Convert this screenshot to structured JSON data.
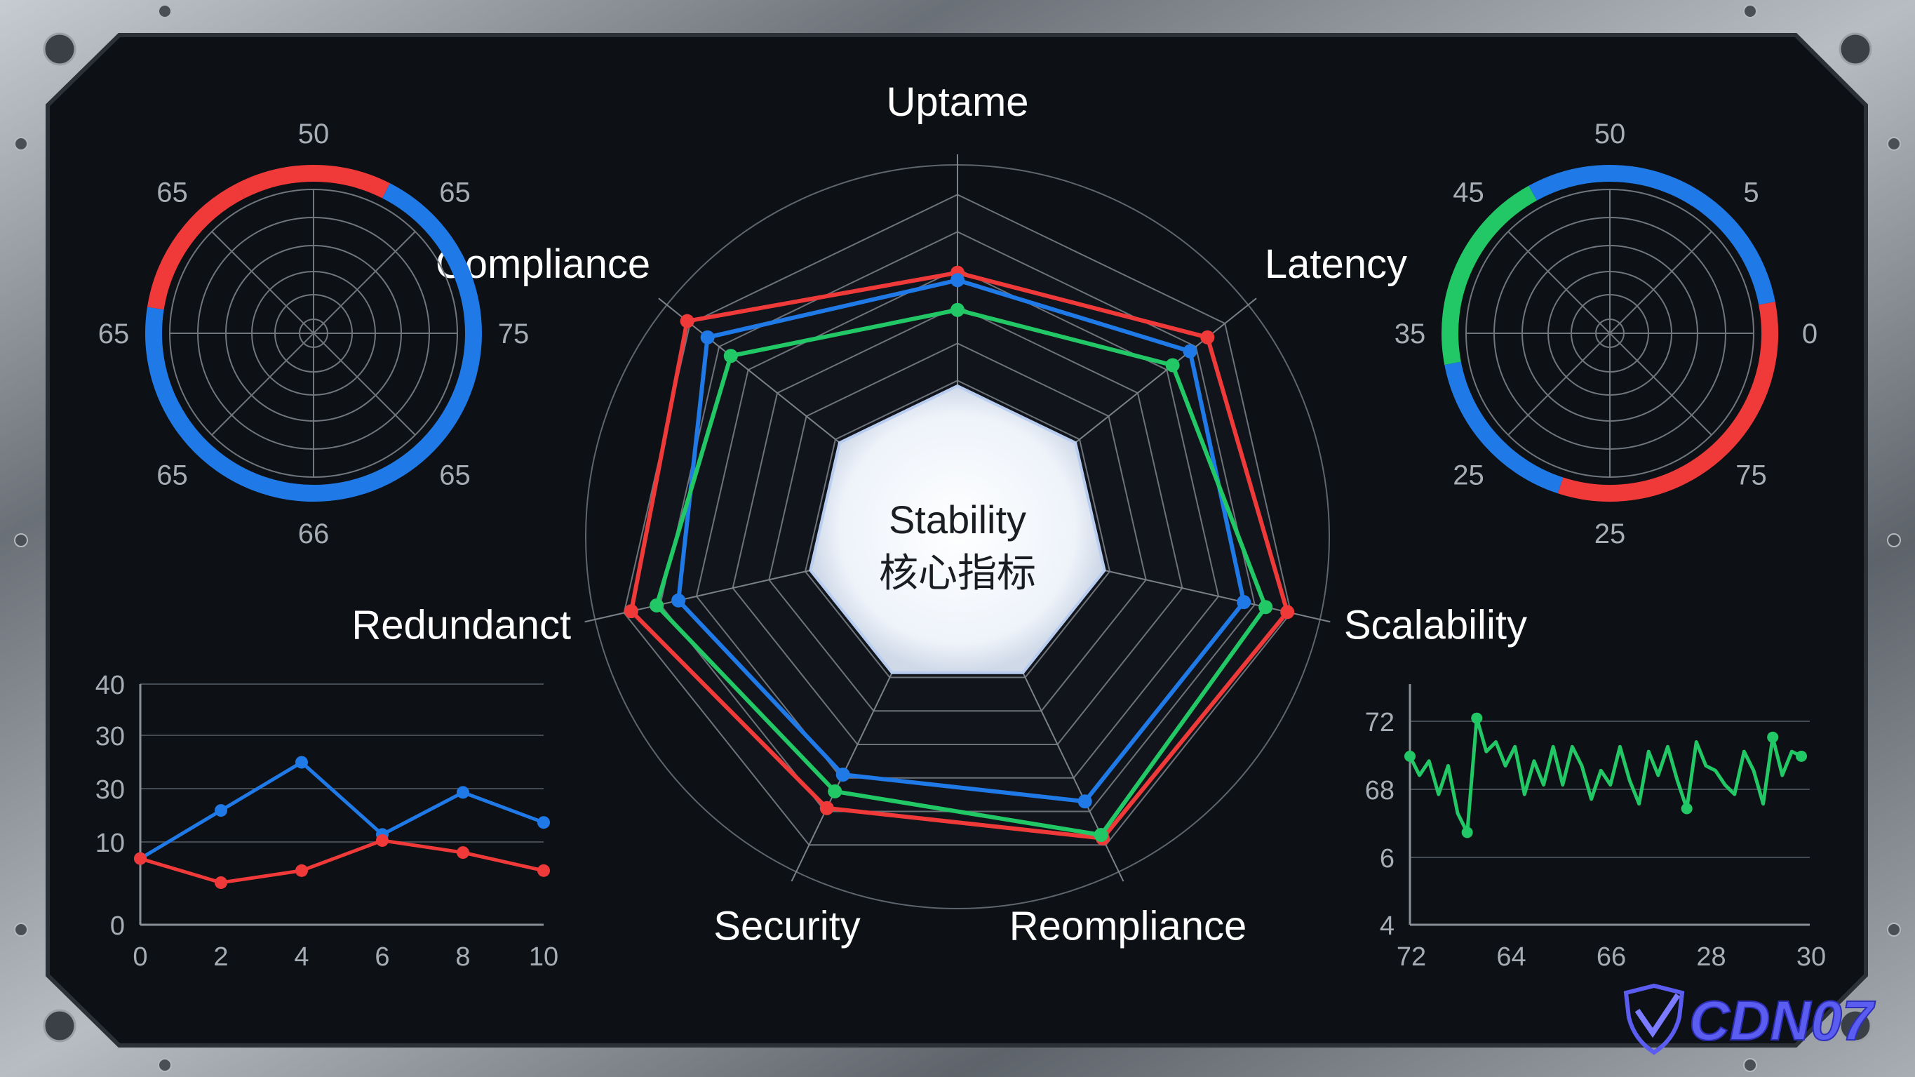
{
  "colors": {
    "red": "#f03a3a",
    "blue": "#1f7ae8",
    "green": "#22c865",
    "panel": "#0e1115",
    "frame": "#8b9096",
    "label": "#ffffff",
    "tick": "#a7adb4"
  },
  "watermark": "CDN07",
  "chart_data": [
    {
      "type": "radar",
      "center_title": "Stability",
      "center_subtitle": "核心指标",
      "axes": [
        "Uptame",
        "Latency",
        "Scalability",
        "Reompliance",
        "Security",
        "Redundanct",
        "Compliance"
      ],
      "rmax": 100,
      "series": [
        {
          "color": "#f03a3a",
          "values": [
            71,
            86,
            91,
            90,
            81,
            90,
            93
          ]
        },
        {
          "color": "#1f7ae8",
          "values": [
            69,
            80,
            79,
            79,
            71,
            77,
            86
          ]
        },
        {
          "color": "#22c865",
          "values": [
            61,
            74,
            85,
            89,
            76,
            83,
            78
          ]
        }
      ]
    },
    {
      "type": "pie",
      "ring_labels": [
        "50",
        "65",
        "75",
        "65",
        "66",
        "65",
        "65",
        "65"
      ],
      "segments": [
        {
          "color": "#f03a3a",
          "value": 15
        },
        {
          "color": "#1f7ae8",
          "value": 70
        },
        {
          "color": "#f03a3a",
          "value": 15
        }
      ]
    },
    {
      "type": "pie",
      "ring_labels": [
        "50",
        "5",
        "0",
        "75",
        "25",
        "25",
        "35",
        "45"
      ],
      "segments": [
        {
          "color": "#1f7ae8",
          "value": 22
        },
        {
          "color": "#f03a3a",
          "value": 33
        },
        {
          "color": "#1f7ae8",
          "value": 17
        },
        {
          "color": "#22c865",
          "value": 20
        },
        {
          "color": "#1f7ae8",
          "value": 8
        }
      ]
    },
    {
      "type": "line",
      "xticks": [
        "0",
        "2",
        "4",
        "6",
        "8",
        "10"
      ],
      "yticks": [
        "40",
        "30",
        "30",
        "10",
        "0"
      ],
      "x": [
        0,
        2,
        4,
        6,
        8,
        10
      ],
      "xlim": [
        0,
        10
      ],
      "ylim": [
        0,
        40
      ],
      "series": [
        {
          "color": "#1f7ae8",
          "values": [
            11,
            19,
            27,
            15,
            22,
            17
          ]
        },
        {
          "color": "#f03a3a",
          "values": [
            11,
            7,
            9,
            14,
            12,
            9
          ]
        }
      ]
    },
    {
      "type": "line",
      "xticks": [
        "72",
        "64",
        "66",
        "28",
        "30"
      ],
      "yticks": [
        "72",
        "68",
        "6",
        "4"
      ],
      "ylim": [
        4,
        74
      ],
      "series": [
        {
          "color": "#22c865",
          "values": [
            68,
            64,
            67,
            60,
            66,
            56,
            52,
            76,
            69,
            71,
            66,
            70,
            60,
            67,
            62,
            70,
            62,
            70,
            66,
            59,
            65,
            62,
            70,
            63,
            58,
            69,
            64,
            70,
            63,
            57,
            71,
            66,
            65,
            62,
            60,
            69,
            65,
            58,
            72,
            64,
            69,
            68
          ]
        }
      ]
    }
  ]
}
